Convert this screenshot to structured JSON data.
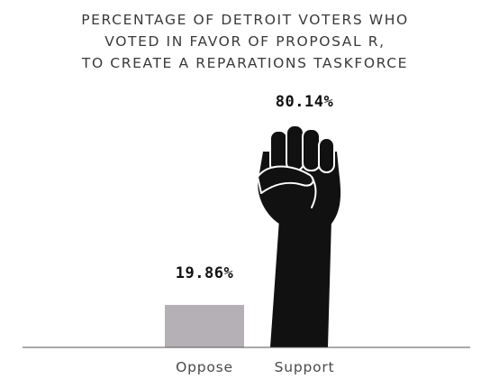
{
  "chart_data": {
    "type": "bar",
    "title_lines": [
      "PERCENTAGE OF DETROIT VOTERS WHO",
      "VOTED IN FAVOR OF PROPOSAL R,",
      "TO CREATE A REPARATIONS TASKFORCE"
    ],
    "categories": [
      "Oppose",
      "Support"
    ],
    "values": [
      19.86,
      80.14
    ],
    "data_labels": [
      "19.86%",
      "80.14%"
    ],
    "ylim": [
      0,
      100
    ],
    "grid": false,
    "legend": "none",
    "colors": {
      "oppose": "#b5b0b5",
      "support": "#111111",
      "axis": "#555555"
    },
    "bar_icons": [
      "none",
      "raised-fist-icon"
    ]
  }
}
